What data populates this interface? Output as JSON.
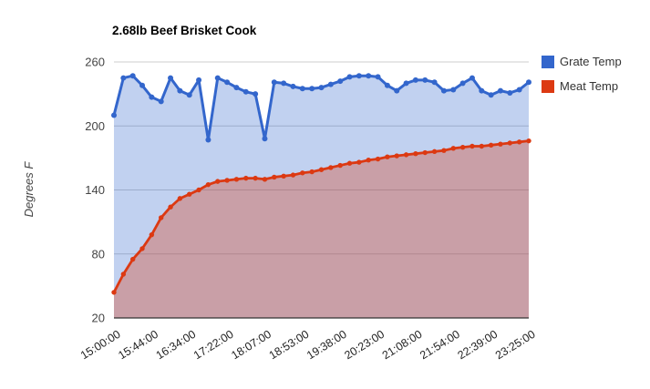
{
  "title": "2.68lb Beef Brisket Cook",
  "y_axis_title": "Degrees F",
  "legend": {
    "position": "right",
    "items": [
      {
        "label": "Grate Temp",
        "color": "#3366CC"
      },
      {
        "label": "Meat Temp",
        "color": "#DC3912"
      }
    ]
  },
  "colors": {
    "grate": "#3366CC",
    "meat": "#DC3912",
    "gridline": "#CCCCCC",
    "baseline": "#333333",
    "y_tick_text": "#444444",
    "x_tick_text": "#222222",
    "axis_title_text": "#444444",
    "title_text": "#000000",
    "background": "#FFFFFF"
  },
  "chart_data": {
    "type": "area",
    "title": "2.68lb Beef Brisket Cook",
    "xlabel": "",
    "ylabel": "Degrees F",
    "ylim": [
      20,
      260
    ],
    "yticks": [
      20,
      80,
      140,
      200,
      260
    ],
    "grid": "horizontal-only",
    "legend_position": "right",
    "area_opacity": 0.3,
    "points_shown": true,
    "x_tick_labels": [
      "15:00:00",
      "15:44:00",
      "16:34:00",
      "17:22:00",
      "18:07:00",
      "18:53:00",
      "19:38:00",
      "20:23:00",
      "21:08:00",
      "21:54:00",
      "22:39:00",
      "23:25:00"
    ],
    "tick_every_n_points": 4,
    "x_tick_rotation_deg": -32,
    "series": [
      {
        "name": "Grate Temp",
        "color": "#3366CC",
        "values": [
          210,
          245,
          247,
          238,
          227,
          223,
          245,
          233,
          229,
          243,
          187,
          245,
          241,
          236,
          232,
          230,
          188,
          241,
          240,
          237,
          235,
          235,
          236,
          239,
          242,
          246,
          247,
          247,
          246,
          238,
          233,
          240,
          243,
          243,
          241,
          233,
          234,
          240,
          245,
          233,
          229,
          233,
          231,
          234,
          241
        ]
      },
      {
        "name": "Meat Temp",
        "color": "#DC3912",
        "values": [
          44,
          61,
          75,
          85,
          98,
          114,
          124,
          132,
          136,
          140,
          145,
          148,
          149,
          150,
          151,
          151,
          150,
          152,
          153,
          154,
          156,
          157,
          159,
          161,
          163,
          165,
          166,
          168,
          169,
          171,
          172,
          173,
          174,
          175,
          176,
          177,
          179,
          180,
          181,
          181,
          182,
          183,
          184,
          185,
          186
        ]
      }
    ]
  }
}
